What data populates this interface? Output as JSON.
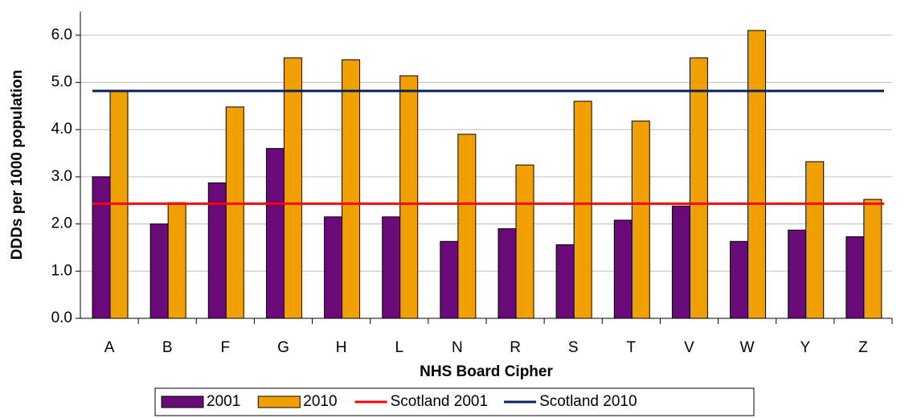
{
  "chart_data": {
    "type": "bar",
    "xlabel": "NHS Board Cipher",
    "ylabel": "DDDs per 1000 population",
    "categories": [
      "A",
      "B",
      "F",
      "G",
      "H",
      "L",
      "N",
      "R",
      "S",
      "T",
      "V",
      "W",
      "Y",
      "Z"
    ],
    "series": [
      {
        "name": "2001",
        "color": "#6a0a78",
        "values": [
          3.0,
          2.0,
          2.87,
          3.6,
          2.15,
          2.15,
          1.63,
          1.9,
          1.56,
          2.08,
          2.38,
          1.63,
          1.87,
          1.73
        ]
      },
      {
        "name": "2010",
        "color": "#f0a000",
        "values": [
          4.82,
          2.45,
          4.48,
          5.52,
          5.48,
          5.14,
          3.9,
          3.25,
          4.6,
          4.18,
          5.52,
          6.1,
          3.32,
          2.52
        ]
      }
    ],
    "reference_lines": [
      {
        "name": "Scotland 2001",
        "color": "#ff0000",
        "value": 2.43
      },
      {
        "name": "Scotland 2010",
        "color": "#0a2060",
        "value": 4.82
      }
    ],
    "ylim": [
      0,
      6.5
    ],
    "yticks": [
      {
        "value": 0,
        "label": "0.0"
      },
      {
        "value": 1,
        "label": "1.0"
      },
      {
        "value": 2,
        "label": "2.0"
      },
      {
        "value": 3,
        "label": "3.0"
      },
      {
        "value": 4,
        "label": "4.0"
      },
      {
        "value": 5,
        "label": "5.0"
      },
      {
        "value": 6,
        "label": "6.0"
      }
    ],
    "grid": true,
    "legend": "bottom"
  }
}
